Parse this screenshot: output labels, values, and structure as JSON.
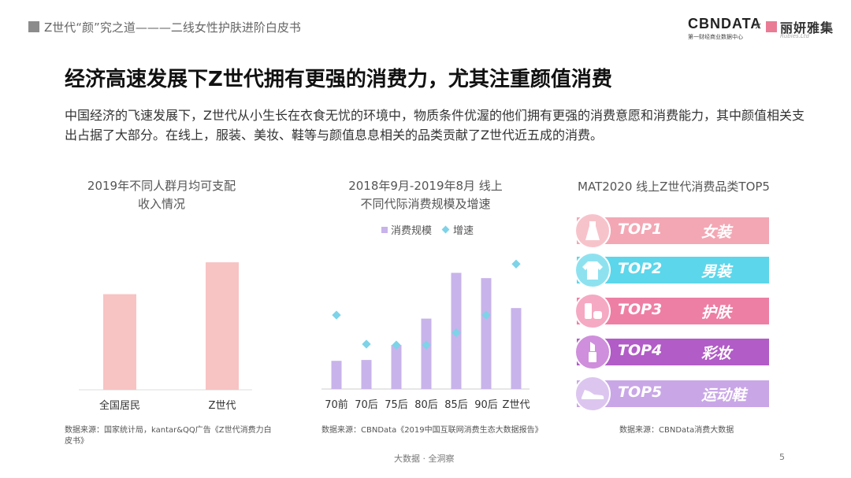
{
  "header": {
    "section_title": "Z世代“颜”究之道———二线女性护肤进阶白皮书",
    "logo_main": "CBNDATA",
    "logo_sub": "第一财经商业数据中心",
    "logo_separator": "×",
    "brand2_name": "丽妍雅集",
    "brand2_sub": "Rubies.Ltd"
  },
  "title": "经济高速发展下Z世代拥有更强的消费力，尤其注重颜值消费",
  "paragraph": "中国经济的飞速发展下，Z世代从小生长在衣食无忧的环境中，物质条件优渥的他们拥有更强的消费意愿和消费能力，其中颜值相关支出占据了大部分。在线上，服装、美妆、鞋等与颜值息息相关的品类贡献了Z世代近五成的消费。",
  "chart_data": [
    {
      "type": "bar",
      "title_line1": "2019年不同人群月均可支配",
      "title_line2": "收入情况",
      "categories": [
        "全国居民",
        "Z世代"
      ],
      "values": [
        2.55,
        3.4
      ],
      "ylim": [
        0,
        4.2
      ],
      "color": "#f8c3c3",
      "source_line1": "数据来源：国家统计局，kantar&QQ广告《Z世代消费力白",
      "source_line2": "皮书》"
    },
    {
      "type": "bar",
      "title_line1": "2018年9月-2019年8月 线上",
      "title_line2": "不同代际消费规模及增速",
      "categories": [
        "70前",
        "70后",
        "75后",
        "80后",
        "85后",
        "90后",
        "Z世代"
      ],
      "series": [
        {
          "name": "消费规模",
          "values": [
            1.6,
            1.65,
            2.5,
            4.0,
            6.6,
            6.3,
            4.6
          ],
          "color": "#c8b3ea"
        },
        {
          "name": "增速",
          "values": [
            4.2,
            2.55,
            2.5,
            2.5,
            3.2,
            4.2,
            7.1
          ],
          "color": "#7dd3e8"
        }
      ],
      "ylim": [
        0,
        8.5
      ],
      "source": "数据来源：CBNData《2019中国互联网消费生态大数据报告》"
    },
    {
      "type": "table",
      "title": "MAT2020 线上Z世代消费品类TOP5",
      "items": [
        {
          "rank": "TOP1",
          "category": "女装",
          "icon": "dress-icon",
          "color": "#f3a7b4",
          "circle": "#f7c3cb"
        },
        {
          "rank": "TOP2",
          "category": "男装",
          "icon": "shirt-icon",
          "color": "#5cd6ea",
          "circle": "#8ee2f0"
        },
        {
          "rank": "TOP3",
          "category": "护肤",
          "icon": "skincare-icon",
          "color": "#ee7fa4",
          "circle": "#f5a9c2"
        },
        {
          "rank": "TOP4",
          "category": "彩妆",
          "icon": "lipstick-icon",
          "color": "#b15cc7",
          "circle": "#cf8fdc"
        },
        {
          "rank": "TOP5",
          "category": "运动鞋",
          "icon": "sneaker-icon",
          "color": "#c9a7e6",
          "circle": "#dcc6ef"
        }
      ],
      "source": "数据来源：CBNData消费大数据"
    }
  ],
  "footer": {
    "tagline": "大数据 · 全洞察",
    "page": "5"
  }
}
